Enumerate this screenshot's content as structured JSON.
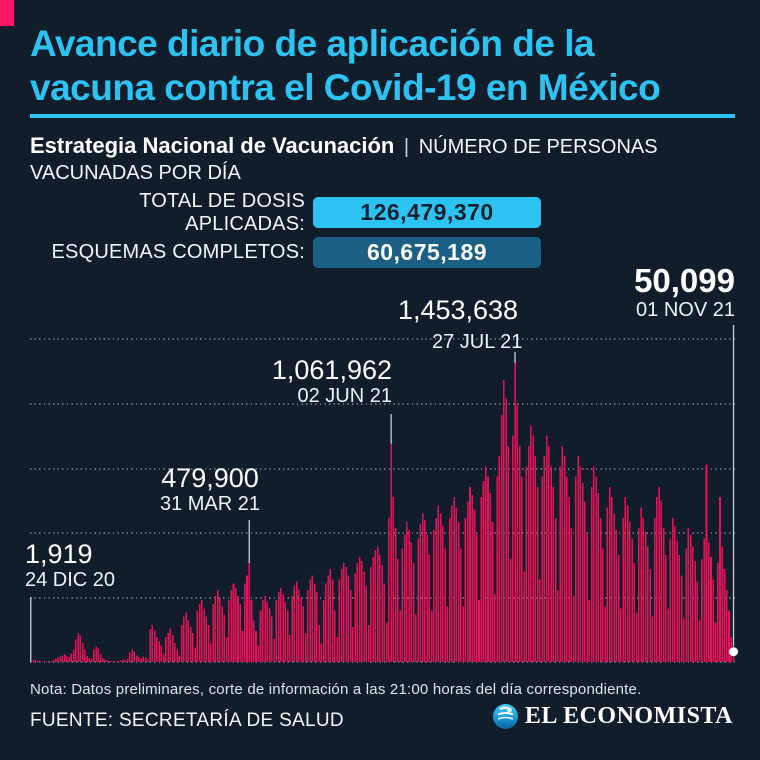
{
  "page": {
    "background": "#121d2b"
  },
  "header": {
    "accent_color": "#fb1766",
    "title_color": "#2cc3f2",
    "title_line1": "Avance diario de aplicación de la",
    "title_line2": "vacuna contra el Covid-19 en México"
  },
  "subtitle": {
    "bold": "Estrategia Nacional de Vacunación",
    "separator": "|",
    "rest": "NÚMERO DE PERSONAS VACUNADAS POR DÍA"
  },
  "stats": [
    {
      "label": "TOTAL DE DOSIS APLICADAS:",
      "value": "126,479,370",
      "badge_bg": "#2cc3f2",
      "badge_text_color": "#10202f"
    },
    {
      "label": "ESQUEMAS COMPLETOS:",
      "value": "60,675,189",
      "badge_bg": "#1b6084",
      "badge_text_color": "#ffffff"
    }
  ],
  "chart_data": {
    "type": "bar",
    "title": "Avance diario de aplicación de la vacuna contra el Covid-19 en México",
    "subtitle": "Estrategia Nacional de Vacunación | Número de personas vacunadas por día",
    "xlabel": "",
    "ylabel": "Personas vacunadas por día",
    "x_start": "24 DIC 20",
    "x_end": "01 NOV 21",
    "ylim": [
      0,
      1575000
    ],
    "grid": "horizontal-dotted",
    "legend": "none",
    "bar_color": "#ea1159",
    "max_value": 1453638,
    "annotations": [
      {
        "label": "1,919",
        "date": "24 DIC 20",
        "value": 1919,
        "index": 0
      },
      {
        "label": "479,900",
        "date": "31 MAR 21",
        "value": 479900,
        "index": 97
      },
      {
        "label": "1,061,962",
        "date": "02 JUN 21",
        "value": 1061962,
        "index": 160
      },
      {
        "label": "1,453,638",
        "date": "27 JUL 21",
        "value": 1453638,
        "index": 215
      },
      {
        "label": "50,099",
        "date": "01 NOV 21",
        "value": 50099,
        "index": 312
      }
    ],
    "values": [
      1919,
      6500,
      9800,
      7200,
      4800,
      3500,
      2600,
      4200,
      2400,
      3100,
      9500,
      14000,
      21000,
      26000,
      31000,
      36000,
      30000,
      24000,
      42000,
      60000,
      110000,
      140000,
      128000,
      92000,
      60000,
      30000,
      20000,
      15000,
      60000,
      75000,
      65000,
      40000,
      20000,
      12000,
      8000,
      6000,
      5000,
      4000,
      3500,
      5200,
      8400,
      10500,
      12500,
      15500,
      46000,
      62000,
      52000,
      31000,
      21000,
      16000,
      26000,
      21000,
      11000,
      160000,
      180000,
      152000,
      122000,
      101000,
      81000,
      42000,
      122000,
      142000,
      162000,
      131000,
      92000,
      61000,
      31000,
      181000,
      221000,
      241000,
      201000,
      171000,
      141000,
      71000,
      251000,
      281000,
      301000,
      261000,
      221000,
      181000,
      91000,
      281000,
      321000,
      351000,
      311000,
      271000,
      231000,
      121000,
      301000,
      351000,
      381000,
      361000,
      321000,
      281000,
      151000,
      381000,
      421000,
      479900,
      301000,
      201000,
      151000,
      81000,
      251000,
      301000,
      321000,
      291000,
      261000,
      221000,
      111000,
      301000,
      341000,
      361000,
      331000,
      291000,
      251000,
      131000,
      321000,
      371000,
      391000,
      351000,
      311000,
      271000,
      141000,
      351000,
      401000,
      421000,
      381000,
      341000,
      181000,
      91000,
      301000,
      381000,
      421000,
      451000,
      401000,
      251000,
      121000,
      401000,
      451000,
      481000,
      461000,
      421000,
      351000,
      171000,
      431000,
      481000,
      511000,
      491000,
      441000,
      371000,
      181000,
      461000,
      511000,
      541000,
      561000,
      521000,
      471000,
      381000,
      191000,
      701000,
      1061962,
      801000,
      651000,
      501000,
      251000,
      551000,
      621000,
      681000,
      641000,
      581000,
      481000,
      231000,
      601000,
      671000,
      721000,
      691000,
      621000,
      521000,
      251000,
      641000,
      701000,
      761000,
      721000,
      661000,
      551000,
      271000,
      701000,
      761000,
      801000,
      751000,
      681000,
      551000,
      271000,
      701000,
      781000,
      851000,
      811000,
      741000,
      621000,
      301000,
      801000,
      881000,
      951000,
      901000,
      821000,
      681000,
      331000,
      901000,
      1001000,
      1201000,
      1371000,
      1281000,
      1051000,
      501000,
      1101000,
      1453638,
      1251000,
      1051000,
      901000,
      441000,
      951000,
      1051000,
      1151000,
      1101000,
      1001000,
      851000,
      401000,
      901000,
      1001000,
      1101000,
      1051000,
      951000,
      851000,
      701000,
      351000,
      951000,
      1051000,
      1001000,
      901000,
      801000,
      651000,
      321000,
      901000,
      1001000,
      951000,
      871000,
      781000,
      621000,
      301000,
      851000,
      951000,
      901000,
      821000,
      701000,
      551000,
      271000,
      751000,
      851000,
      801000,
      721000,
      641000,
      521000,
      261000,
      701000,
      801000,
      761000,
      681000,
      601000,
      481000,
      241000,
      651000,
      751000,
      701000,
      631000,
      561000,
      451000,
      221000,
      701000,
      801000,
      851000,
      781000,
      651000,
      521000,
      261000,
      601000,
      701000,
      661000,
      591000,
      521000,
      421000,
      211000,
      551000,
      651000,
      621000,
      561000,
      491000,
      391000,
      201000,
      501000,
      601000,
      961000,
      581000,
      511000,
      401000,
      191000,
      481000,
      801000,
      561000,
      451000,
      351000,
      251000,
      121000,
      50099
    ]
  },
  "footer": {
    "note": "Nota: Datos preliminares, corte de información a las 21:00 horas del día correspondiente.",
    "source": "FUENTE: SECRETARÍA DE SALUD",
    "logo": {
      "icon": "el-economista-globe-icon",
      "text": "EL ECONOMISTA"
    }
  }
}
